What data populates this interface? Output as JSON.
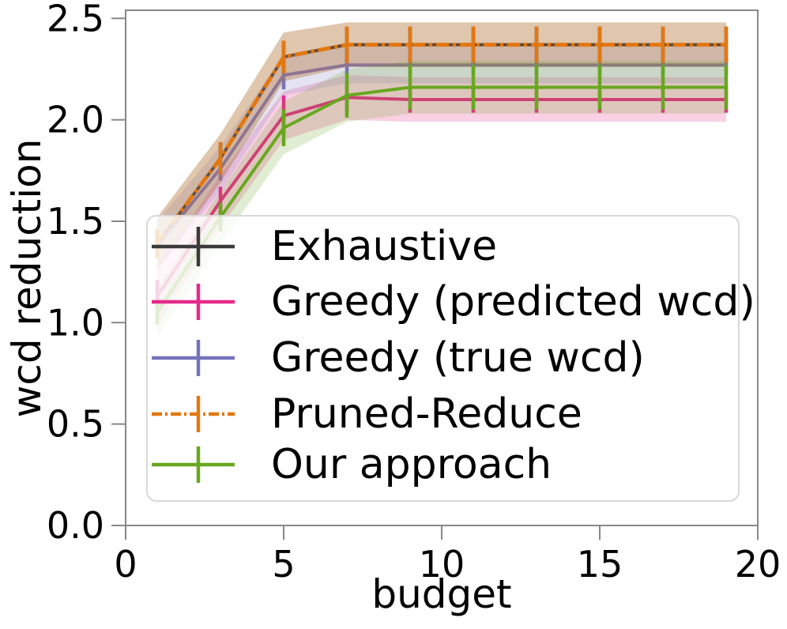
{
  "figure": {
    "kind": "matplotlib-line-plot",
    "background": "#ffffff",
    "axis_color": "#888888",
    "text_color": "#000000"
  },
  "chart_data": {
    "type": "line",
    "title": "",
    "xlabel": "budget",
    "ylabel": "wcd reduction",
    "xlim": [
      0,
      20
    ],
    "ylim": [
      0,
      2.54
    ],
    "xticks": [
      0,
      5,
      10,
      15,
      20
    ],
    "xtick_labels": [
      "0",
      "5",
      "10",
      "15",
      "20"
    ],
    "yticks": [
      0,
      0.5,
      1.0,
      1.5,
      2.0,
      2.5
    ],
    "ytick_labels": [
      "0.0",
      "0.5",
      "1.0",
      "1.5",
      "2.0",
      "2.5"
    ],
    "grid": false,
    "legend": {
      "position": "lower-left",
      "background": "rgba(255,255,255,0.8)",
      "border_color": "#d9d9d9"
    },
    "x": [
      1,
      3,
      5,
      7,
      9,
      11,
      13,
      15,
      17,
      19
    ],
    "series": [
      {
        "id": "exhaustive",
        "name": "Exhaustive",
        "color": "#3a3a3a",
        "linestyle": "solid",
        "values": [
          1.39,
          1.81,
          2.31,
          2.37,
          2.37,
          2.37,
          2.37,
          2.37,
          2.37,
          2.37
        ],
        "err": [
          0.07,
          0.08,
          0.08,
          0.09,
          0.09,
          0.09,
          0.09,
          0.09,
          0.09,
          0.09
        ],
        "band": [
          0.13,
          0.12,
          0.12,
          0.11,
          0.11,
          0.11,
          0.11,
          0.11,
          0.11,
          0.11
        ]
      },
      {
        "id": "greedy-predicted-wcd",
        "name": "Greedy (predicted wcd)",
        "color": "#e7298a",
        "linestyle": "solid",
        "values": [
          1.13,
          1.6,
          2.02,
          2.11,
          2.1,
          2.1,
          2.1,
          2.1,
          2.1,
          2.1
        ],
        "err": [
          0.08,
          0.07,
          0.1,
          0.07,
          0.065,
          0.065,
          0.065,
          0.065,
          0.065,
          0.065
        ],
        "band": [
          0.14,
          0.13,
          0.12,
          0.11,
          0.11,
          0.11,
          0.11,
          0.11,
          0.11,
          0.11
        ]
      },
      {
        "id": "greedy-true-wcd",
        "name": "Greedy (true wcd)",
        "color": "#7673bb",
        "linestyle": "solid",
        "values": [
          1.38,
          1.76,
          2.22,
          2.27,
          2.27,
          2.27,
          2.27,
          2.27,
          2.27,
          2.27
        ],
        "err": [
          0.06,
          0.06,
          0.07,
          0.05,
          0.05,
          0.05,
          0.05,
          0.05,
          0.05,
          0.05
        ],
        "band": [
          0.12,
          0.11,
          0.1,
          0.09,
          0.09,
          0.09,
          0.09,
          0.09,
          0.09,
          0.09
        ]
      },
      {
        "id": "pruned-reduce",
        "name": "Pruned-Reduce",
        "color": "#e27812",
        "linestyle": "dashdot",
        "values": [
          1.39,
          1.81,
          2.31,
          2.37,
          2.37,
          2.37,
          2.37,
          2.37,
          2.37,
          2.37
        ],
        "err": [
          0.07,
          0.08,
          0.08,
          0.09,
          0.09,
          0.09,
          0.09,
          0.09,
          0.09,
          0.09
        ],
        "band": [
          0.13,
          0.12,
          0.12,
          0.11,
          0.11,
          0.11,
          0.11,
          0.11,
          0.11,
          0.11
        ]
      },
      {
        "id": "our-approach",
        "name": "Our approach",
        "color": "#68a71f",
        "linestyle": "solid",
        "values": [
          1.05,
          1.52,
          1.96,
          2.12,
          2.16,
          2.16,
          2.16,
          2.16,
          2.16,
          2.16
        ],
        "err": [
          0.06,
          0.07,
          0.09,
          0.11,
          0.11,
          0.11,
          0.11,
          0.11,
          0.11,
          0.11
        ],
        "band": [
          0.12,
          0.13,
          0.13,
          0.13,
          0.13,
          0.13,
          0.13,
          0.13,
          0.13,
          0.13
        ]
      }
    ]
  }
}
